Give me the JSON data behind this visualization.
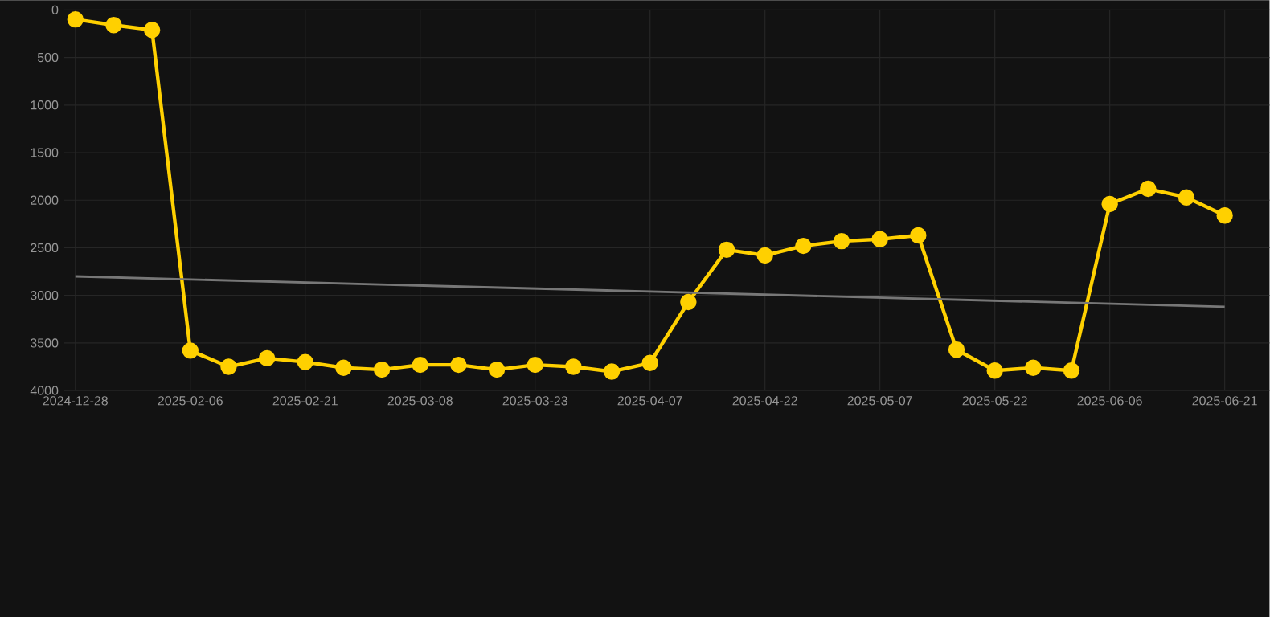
{
  "chart_data": {
    "type": "line",
    "categories": [
      "2024-12-28",
      null,
      null,
      "2025-02-06",
      null,
      null,
      "2025-02-21",
      null,
      null,
      "2025-03-08",
      null,
      null,
      "2025-03-23",
      null,
      null,
      "2025-04-07",
      null,
      null,
      "2025-04-22",
      null,
      null,
      "2025-05-07",
      null,
      null,
      "2025-05-22",
      null,
      null,
      "2025-06-06",
      null,
      null,
      "2025-06-21"
    ],
    "series": [
      {
        "color": "#ffd000",
        "marker": "circle",
        "values": [
          100,
          160,
          210,
          3580,
          3750,
          3660,
          3700,
          3760,
          3780,
          3730,
          3730,
          3780,
          3730,
          3750,
          3800,
          3710,
          3070,
          2520,
          2580,
          2480,
          2430,
          2410,
          2370,
          3570,
          3790,
          3760,
          3790,
          2040,
          1880,
          1970,
          2160
        ]
      },
      {
        "type": "line",
        "color": "#777777",
        "marker": "none",
        "values": [
          2800,
          null,
          null,
          null,
          null,
          null,
          null,
          null,
          null,
          null,
          null,
          null,
          null,
          null,
          null,
          null,
          null,
          null,
          null,
          null,
          null,
          null,
          null,
          null,
          null,
          null,
          null,
          null,
          null,
          null,
          3120
        ]
      }
    ],
    "ylim": [
      4000,
      0
    ],
    "yticks": [
      0,
      500,
      1000,
      1500,
      2000,
      2500,
      3000,
      3500,
      4000
    ],
    "grid": true
  }
}
